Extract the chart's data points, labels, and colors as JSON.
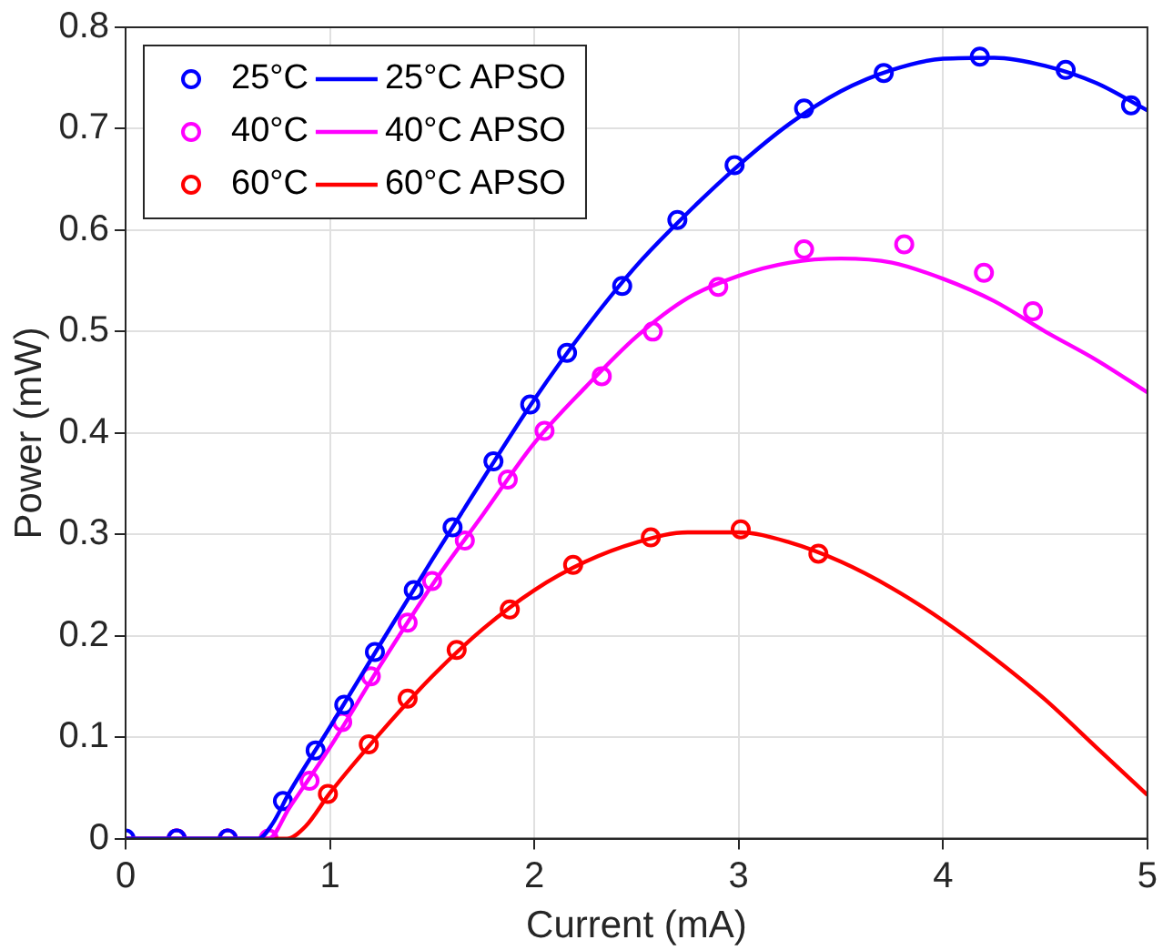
{
  "chart_data": {
    "type": "line",
    "xlabel": "Current (mA)",
    "ylabel": "Power (mW)",
    "xlim": [
      0,
      5
    ],
    "ylim": [
      0,
      0.8
    ],
    "xticks": [
      0,
      1,
      2,
      3,
      4,
      5
    ],
    "yticks": [
      0,
      0.1,
      0.2,
      0.3,
      0.4,
      0.5,
      0.6,
      0.7,
      0.8
    ],
    "grid": true,
    "legend": "top left",
    "series": [
      {
        "name": "25°C",
        "type": "scatter",
        "marker": "circle",
        "color": "#0000ff",
        "x": [
          0,
          0.25,
          0.5,
          0.77,
          0.93,
          1.07,
          1.22,
          1.41,
          1.6,
          1.8,
          1.98,
          2.16,
          2.43,
          2.7,
          2.98,
          3.32,
          3.71,
          4.18,
          4.6,
          4.92
        ],
        "values": [
          0,
          0,
          0,
          0.037,
          0.087,
          0.132,
          0.184,
          0.245,
          0.307,
          0.372,
          0.428,
          0.479,
          0.545,
          0.61,
          0.664,
          0.72,
          0.755,
          0.771,
          0.758,
          0.723
        ]
      },
      {
        "name": "40°C",
        "type": "scatter",
        "marker": "circle",
        "color": "#ff00ff",
        "x": [
          0.25,
          0.5,
          0.7,
          0.9,
          1.06,
          1.2,
          1.38,
          1.5,
          1.66,
          1.87,
          2.05,
          2.33,
          2.58,
          2.9,
          3.32,
          3.81,
          4.2,
          4.44
        ],
        "values": [
          0,
          0,
          0,
          0.057,
          0.115,
          0.16,
          0.213,
          0.254,
          0.294,
          0.354,
          0.402,
          0.456,
          0.5,
          0.544,
          0.581,
          0.586,
          0.558,
          0.52
        ]
      },
      {
        "name": "60°C",
        "type": "scatter",
        "marker": "circle",
        "color": "#ff0000",
        "x": [
          0.25,
          0.5,
          0.99,
          1.19,
          1.38,
          1.62,
          1.88,
          2.19,
          2.57,
          3.01,
          3.39
        ],
        "values": [
          0,
          0,
          0.044,
          0.093,
          0.138,
          0.186,
          0.226,
          0.27,
          0.297,
          0.305,
          0.281
        ]
      },
      {
        "name": "25°C APSO",
        "type": "line",
        "marker": "none",
        "line_style": "solid",
        "color": "#0000ff",
        "x": [
          0,
          0.65,
          0.72,
          0.8,
          1,
          1.25,
          1.5,
          1.75,
          2,
          2.25,
          2.5,
          2.75,
          3,
          3.25,
          3.5,
          3.75,
          4,
          4.25,
          4.5,
          4.75,
          5
        ],
        "values": [
          0,
          0,
          0.015,
          0.045,
          0.11,
          0.193,
          0.275,
          0.355,
          0.433,
          0.503,
          0.565,
          0.617,
          0.664,
          0.705,
          0.737,
          0.758,
          0.769,
          0.77,
          0.762,
          0.745,
          0.718
        ]
      },
      {
        "name": "40°C APSO",
        "type": "line",
        "marker": "none",
        "line_style": "solid",
        "color": "#ff00ff",
        "x": [
          0,
          0.7,
          0.8,
          1,
          1.25,
          1.5,
          1.75,
          2,
          2.25,
          2.5,
          2.75,
          3,
          3.25,
          3.5,
          3.75,
          4,
          4.25,
          4.5,
          4.75,
          5
        ],
        "values": [
          0,
          0,
          0.03,
          0.09,
          0.172,
          0.25,
          0.32,
          0.39,
          0.445,
          0.495,
          0.533,
          0.555,
          0.568,
          0.572,
          0.568,
          0.552,
          0.53,
          0.5,
          0.472,
          0.44
        ]
      },
      {
        "name": "60°C APSO",
        "type": "line",
        "marker": "none",
        "line_style": "solid",
        "color": "#ff0000",
        "x": [
          0,
          0.79,
          0.88,
          1,
          1.25,
          1.5,
          1.75,
          2,
          2.25,
          2.5,
          2.75,
          3,
          3.25,
          3.5,
          3.75,
          4,
          4.25,
          4.5,
          4.75,
          5
        ],
        "values": [
          0,
          0,
          0.012,
          0.045,
          0.105,
          0.16,
          0.207,
          0.245,
          0.273,
          0.292,
          0.302,
          0.302,
          0.292,
          0.273,
          0.247,
          0.215,
          0.178,
          0.137,
          0.09,
          0.043
        ]
      }
    ]
  }
}
